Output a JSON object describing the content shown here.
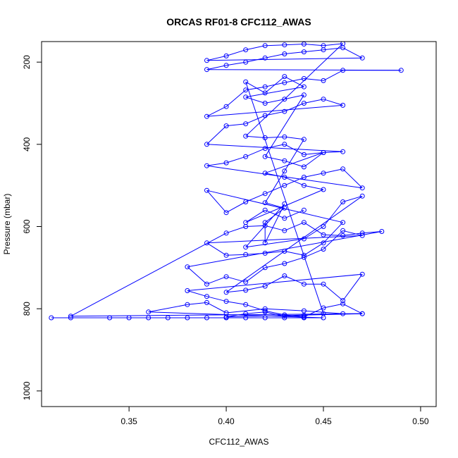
{
  "chart_data": {
    "type": "scatter",
    "title": "ORCAS RF01-8 CFC112_AWAS",
    "xlabel": "CFC112_AWAS",
    "ylabel": "Pressure (mbar)",
    "xlim": [
      0.305,
      0.508
    ],
    "ylim": [
      1038,
      150
    ],
    "y_reversed": true,
    "xticks": [
      0.35,
      0.4,
      0.45,
      0.5
    ],
    "xtick_labels": [
      "0.35",
      "0.40",
      "0.45",
      "0.50"
    ],
    "yticks": [
      200,
      400,
      600,
      800,
      1000
    ],
    "ytick_labels": [
      "200",
      "400",
      "600",
      "800",
      "1000"
    ],
    "grid": false,
    "legend": "none",
    "colors": {
      "series": "#0000ff",
      "axes": "#000000",
      "background": "#ffffff"
    },
    "marker": "open-circle",
    "connected": true,
    "series": [
      {
        "points": [
          [
            0.31,
            822
          ],
          [
            0.32,
            822
          ],
          [
            0.34,
            822
          ],
          [
            0.35,
            822
          ],
          [
            0.36,
            822
          ],
          [
            0.37,
            822
          ],
          [
            0.38,
            822
          ],
          [
            0.39,
            822
          ],
          [
            0.4,
            822
          ],
          [
            0.41,
            822
          ],
          [
            0.42,
            822
          ],
          [
            0.43,
            822
          ],
          [
            0.44,
            822
          ],
          [
            0.45,
            822
          ],
          [
            0.36,
            808
          ],
          [
            0.38,
            790
          ],
          [
            0.39,
            785
          ],
          [
            0.4,
            810
          ],
          [
            0.42,
            800
          ],
          [
            0.44,
            805
          ],
          [
            0.46,
            812
          ],
          [
            0.47,
            812
          ],
          [
            0.32,
            818
          ],
          [
            0.4,
            616
          ],
          [
            0.41,
            600
          ],
          [
            0.42,
            598
          ],
          [
            0.43,
            610
          ],
          [
            0.44,
            590
          ],
          [
            0.45,
            620
          ],
          [
            0.46,
            622
          ],
          [
            0.47,
            616
          ],
          [
            0.48,
            612
          ],
          [
            0.38,
            698
          ],
          [
            0.39,
            740
          ],
          [
            0.4,
            722
          ],
          [
            0.41,
            735
          ],
          [
            0.42,
            700
          ],
          [
            0.43,
            690
          ],
          [
            0.44,
            675
          ],
          [
            0.45,
            655
          ],
          [
            0.46,
            610
          ],
          [
            0.47,
            622
          ],
          [
            0.39,
            640
          ],
          [
            0.4,
            670
          ],
          [
            0.41,
            668
          ],
          [
            0.42,
            665
          ],
          [
            0.43,
            660
          ],
          [
            0.44,
            670
          ],
          [
            0.45,
            640
          ],
          [
            0.46,
            590
          ],
          [
            0.39,
            512
          ],
          [
            0.4,
            566
          ],
          [
            0.41,
            540
          ],
          [
            0.42,
            520
          ],
          [
            0.43,
            500
          ],
          [
            0.44,
            480
          ],
          [
            0.45,
            470
          ],
          [
            0.46,
            460
          ],
          [
            0.47,
            506
          ],
          [
            0.39,
            452
          ],
          [
            0.4,
            445
          ],
          [
            0.41,
            430
          ],
          [
            0.42,
            410
          ],
          [
            0.43,
            400
          ],
          [
            0.44,
            425
          ],
          [
            0.45,
            420
          ],
          [
            0.46,
            418
          ],
          [
            0.39,
            400
          ],
          [
            0.4,
            355
          ],
          [
            0.41,
            350
          ],
          [
            0.42,
            330
          ],
          [
            0.43,
            320
          ],
          [
            0.44,
            300
          ],
          [
            0.45,
            290
          ],
          [
            0.46,
            305
          ],
          [
            0.39,
            332
          ],
          [
            0.4,
            308
          ],
          [
            0.41,
            268
          ],
          [
            0.42,
            260
          ],
          [
            0.43,
            250
          ],
          [
            0.44,
            240
          ],
          [
            0.45,
            245
          ],
          [
            0.46,
            220
          ],
          [
            0.49,
            220
          ],
          [
            0.39,
            218
          ],
          [
            0.4,
            208
          ],
          [
            0.41,
            200
          ],
          [
            0.42,
            190
          ],
          [
            0.43,
            180
          ],
          [
            0.44,
            175
          ],
          [
            0.45,
            170
          ],
          [
            0.46,
            165
          ],
          [
            0.47,
            190
          ],
          [
            0.39,
            196
          ],
          [
            0.4,
            185
          ],
          [
            0.41,
            170
          ],
          [
            0.42,
            160
          ],
          [
            0.43,
            158
          ],
          [
            0.44,
            156
          ],
          [
            0.45,
            160
          ],
          [
            0.46,
            155
          ],
          [
            0.41,
            380
          ],
          [
            0.42,
            384
          ],
          [
            0.43,
            382
          ],
          [
            0.44,
            388
          ],
          [
            0.43,
            465
          ],
          [
            0.42,
            542
          ],
          [
            0.43,
            555
          ],
          [
            0.42,
            590
          ],
          [
            0.42,
            640
          ],
          [
            0.43,
            545
          ],
          [
            0.41,
            650
          ],
          [
            0.44,
            630
          ],
          [
            0.45,
            600
          ],
          [
            0.46,
            540
          ],
          [
            0.47,
            526
          ],
          [
            0.4,
            760
          ],
          [
            0.41,
            755
          ],
          [
            0.42,
            745
          ],
          [
            0.43,
            720
          ],
          [
            0.44,
            740
          ],
          [
            0.45,
            740
          ],
          [
            0.46,
            780
          ],
          [
            0.47,
            716
          ],
          [
            0.38,
            756
          ],
          [
            0.39,
            770
          ],
          [
            0.4,
            782
          ],
          [
            0.41,
            790
          ],
          [
            0.42,
            805
          ],
          [
            0.43,
            815
          ],
          [
            0.44,
            820
          ],
          [
            0.45,
            798
          ],
          [
            0.46,
            788
          ],
          [
            0.47,
            812
          ],
          [
            0.4,
            820
          ],
          [
            0.41,
            812
          ],
          [
            0.42,
            808
          ],
          [
            0.43,
            818
          ],
          [
            0.44,
            816
          ],
          [
            0.45,
            812
          ],
          [
            0.41,
            248
          ],
          [
            0.42,
            275
          ],
          [
            0.43,
            235
          ],
          [
            0.44,
            260
          ],
          [
            0.41,
            285
          ],
          [
            0.42,
            300
          ],
          [
            0.43,
            290
          ],
          [
            0.44,
            280
          ],
          [
            0.42,
            430
          ],
          [
            0.43,
            440
          ],
          [
            0.44,
            455
          ],
          [
            0.45,
            420
          ],
          [
            0.42,
            470
          ],
          [
            0.43,
            480
          ],
          [
            0.44,
            500
          ],
          [
            0.45,
            510
          ],
          [
            0.41,
            590
          ],
          [
            0.42,
            560
          ],
          [
            0.43,
            580
          ],
          [
            0.44,
            560
          ]
        ]
      }
    ]
  }
}
